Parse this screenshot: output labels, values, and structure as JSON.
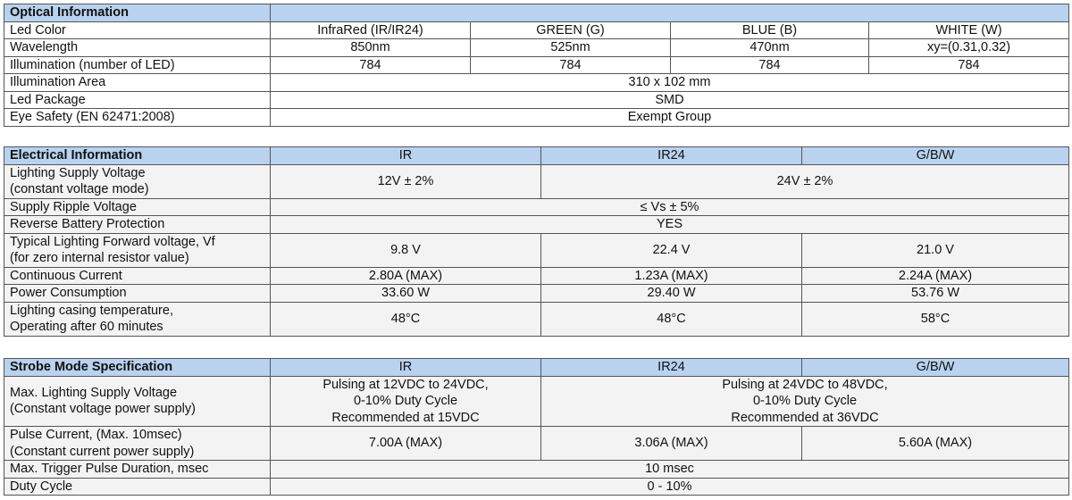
{
  "tables": [
    {
      "title": "Optical Information",
      "header": [],
      "rows": [
        {
          "label": [
            "Led Color"
          ],
          "cells": [
            [
              "InfraRed (IR/IR24)"
            ],
            [
              "GREEN (G)"
            ],
            [
              "BLUE (B)"
            ],
            [
              "WHITE (W)"
            ]
          ]
        },
        {
          "label": [
            "Wavelength"
          ],
          "cells": [
            [
              "850nm"
            ],
            [
              "525nm"
            ],
            [
              "470nm"
            ],
            [
              "xy=(0.31,0.32)"
            ]
          ]
        },
        {
          "label": [
            "Illumination (number of LED)"
          ],
          "cells": [
            [
              "784"
            ],
            [
              "784"
            ],
            [
              "784"
            ],
            [
              "784"
            ]
          ]
        },
        {
          "label": [
            "Illumination Area"
          ],
          "cells": [
            [
              "310 x 102 mm"
            ]
          ]
        },
        {
          "label": [
            "Led Package"
          ],
          "cells": [
            [
              "SMD"
            ]
          ]
        },
        {
          "label": [
            "Eye Safety (EN 62471:2008)"
          ],
          "cells": [
            [
              "Exempt Group"
            ]
          ]
        }
      ]
    },
    {
      "title": "Electrical Information",
      "header": [
        "IR",
        "IR24",
        "G/B/W"
      ],
      "rows": [
        {
          "label": [
            "Lighting Supply Voltage",
            "(constant voltage mode)"
          ],
          "cells": [
            [
              "12V ± 2%"
            ],
            [
              "24V ± 2%"
            ]
          ]
        },
        {
          "label": [
            "Supply Ripple Voltage"
          ],
          "cells": [
            [
              "≤ Vs ± 5%"
            ]
          ]
        },
        {
          "label": [
            "Reverse Battery Protection"
          ],
          "cells": [
            [
              "YES"
            ]
          ]
        },
        {
          "label": [
            "Typical Lighting Forward voltage, Vf",
            "(for zero internal resistor value)"
          ],
          "cells": [
            [
              "9.8 V"
            ],
            [
              "22.4 V"
            ],
            [
              "21.0 V"
            ]
          ]
        },
        {
          "label": [
            "Continuous Current"
          ],
          "cells": [
            [
              "2.80A (MAX)"
            ],
            [
              "1.23A (MAX)"
            ],
            [
              "2.24A (MAX)"
            ]
          ]
        },
        {
          "label": [
            "Power Consumption"
          ],
          "cells": [
            [
              "33.60 W"
            ],
            [
              "29.40 W"
            ],
            [
              "53.76 W"
            ]
          ]
        },
        {
          "label": [
            "Lighting casing temperature,",
            "Operating after 60 minutes"
          ],
          "cells": [
            [
              "48°C"
            ],
            [
              "48°C"
            ],
            [
              "58°C"
            ]
          ]
        }
      ]
    },
    {
      "title": "Strobe Mode Specification",
      "header": [
        "IR",
        "IR24",
        "G/B/W"
      ],
      "rows": [
        {
          "label": [
            "Max. Lighting Supply Voltage",
            "(Constant voltage power supply)"
          ],
          "cells": [
            [
              "Pulsing at 12VDC to 24VDC,",
              "0-10% Duty Cycle",
              "Recommended at 15VDC"
            ],
            [
              "Pulsing at 24VDC to 48VDC,",
              "0-10% Duty Cycle",
              "Recommended at 36VDC"
            ]
          ]
        },
        {
          "label": [
            "Pulse Current, (Max. 10msec)",
            "(Constant current power supply)"
          ],
          "cells": [
            [
              "7.00A (MAX)"
            ],
            [
              "3.06A (MAX)"
            ],
            [
              "5.60A (MAX)"
            ]
          ]
        },
        {
          "label": [
            "Max. Trigger Pulse Duration, msec"
          ],
          "cells": [
            [
              "10 msec"
            ]
          ]
        },
        {
          "label": [
            "Duty Cycle"
          ],
          "cells": [
            [
              "0 - 10%"
            ]
          ]
        }
      ]
    }
  ]
}
